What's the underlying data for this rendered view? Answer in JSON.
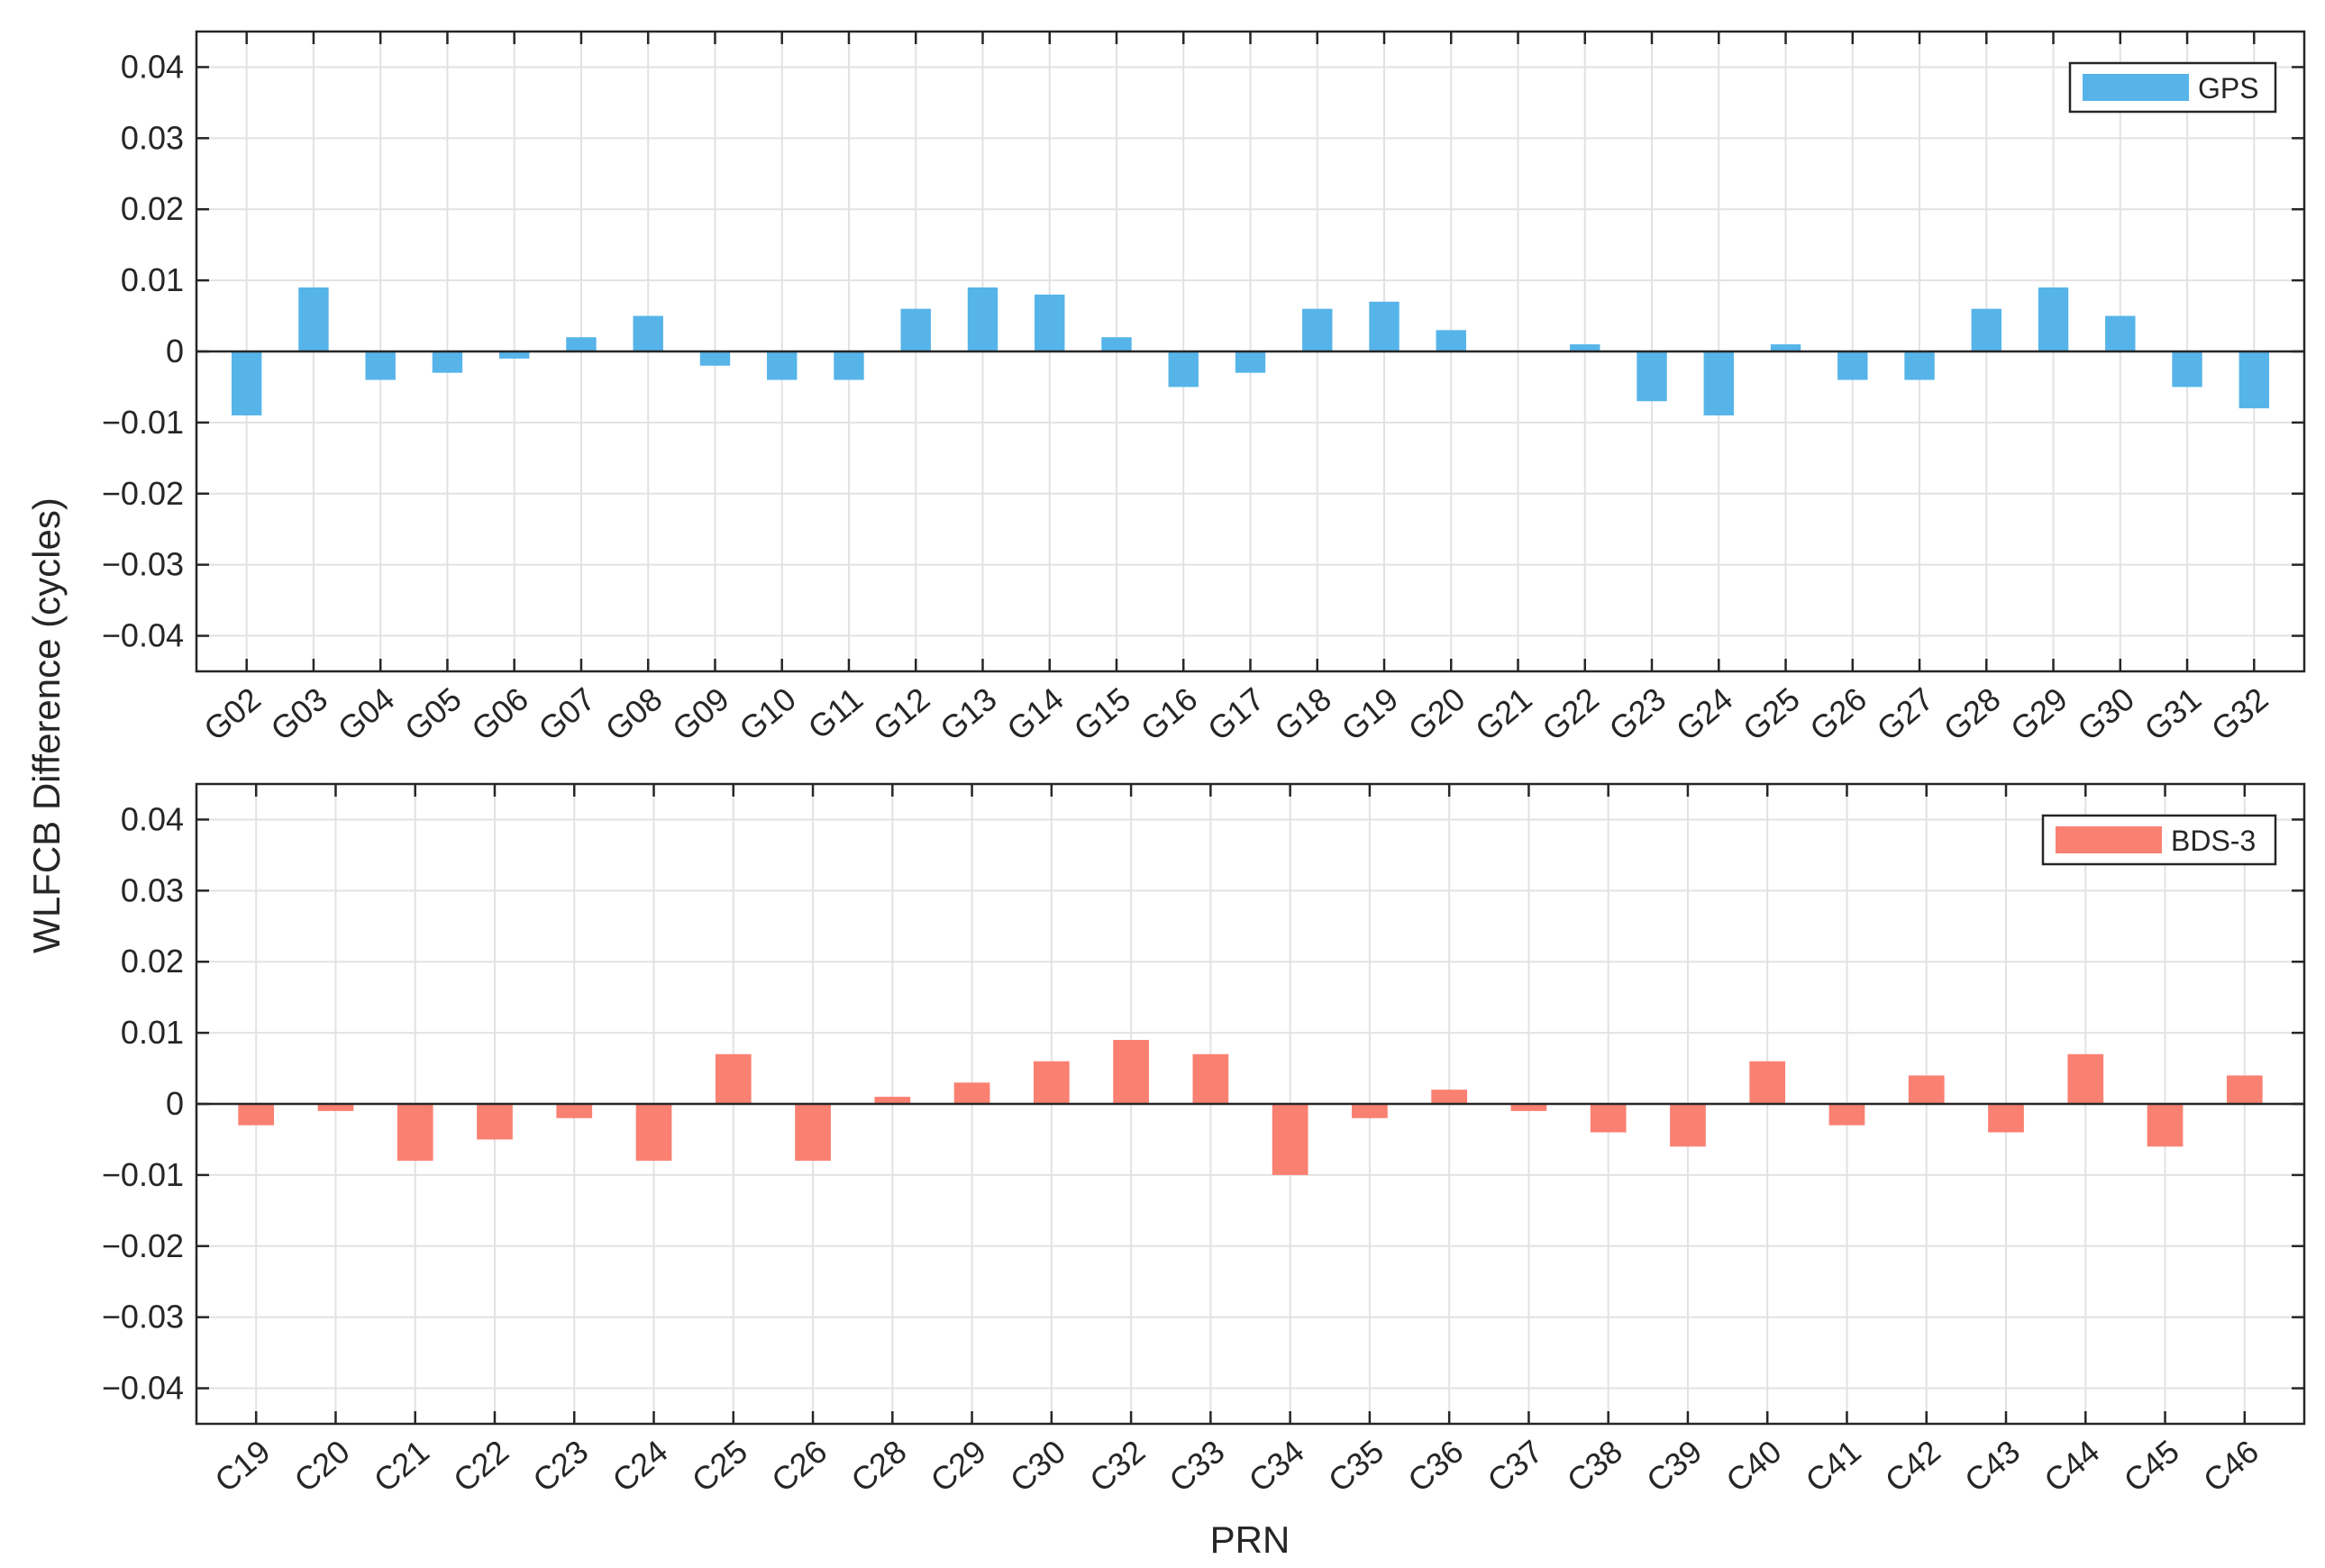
{
  "figure": {
    "ylabel": "WLFCB Difference (cycles)",
    "xlabel": "PRN"
  },
  "chart_data": [
    {
      "type": "bar",
      "categories": [
        "G02",
        "G03",
        "G04",
        "G05",
        "G06",
        "G07",
        "G08",
        "G09",
        "G10",
        "G11",
        "G12",
        "G13",
        "G14",
        "G15",
        "G16",
        "G17",
        "G18",
        "G19",
        "G20",
        "G21",
        "G22",
        "G23",
        "G24",
        "G25",
        "G26",
        "G27",
        "G28",
        "G29",
        "G30",
        "G31",
        "G32"
      ],
      "series": [
        {
          "name": "GPS",
          "color": "#56B4E9",
          "values": [
            -0.009,
            0.009,
            -0.004,
            -0.003,
            -0.001,
            0.002,
            0.005,
            -0.002,
            -0.004,
            -0.004,
            0.006,
            0.009,
            0.008,
            0.002,
            -0.005,
            -0.003,
            0.006,
            0.007,
            0.003,
            0,
            0.001,
            -0.007,
            -0.009,
            0.001,
            -0.004,
            -0.004,
            0.006,
            0.009,
            0.005,
            -0.005,
            -0.008
          ]
        }
      ],
      "ylim": [
        -0.045,
        0.045
      ],
      "yticks": [
        -0.04,
        -0.03,
        -0.02,
        -0.01,
        0,
        0.01,
        0.02,
        0.03,
        0.04
      ],
      "ytick_labels": [
        "−0.04",
        "−0.03",
        "−0.02",
        "−0.01",
        "0",
        "0.01",
        "0.02",
        "0.03",
        "0.04"
      ],
      "grid": true,
      "legend": "top-right"
    },
    {
      "type": "bar",
      "categories": [
        "C19",
        "C20",
        "C21",
        "C22",
        "C23",
        "C24",
        "C25",
        "C26",
        "C28",
        "C29",
        "C30",
        "C32",
        "C33",
        "C34",
        "C35",
        "C36",
        "C37",
        "C38",
        "C39",
        "C40",
        "C41",
        "C42",
        "C43",
        "C44",
        "C45",
        "C46"
      ],
      "series": [
        {
          "name": "BDS-3",
          "color": "#FA8072",
          "values": [
            -0.003,
            -0.001,
            -0.008,
            -0.005,
            -0.002,
            -0.008,
            0.007,
            -0.008,
            0.001,
            0.003,
            0.006,
            0.009,
            0.007,
            -0.01,
            -0.002,
            0.002,
            -0.001,
            -0.004,
            -0.006,
            0.006,
            -0.003,
            0.004,
            -0.004,
            0.007,
            -0.006,
            0.004
          ]
        }
      ],
      "ylim": [
        -0.045,
        0.045
      ],
      "yticks": [
        -0.04,
        -0.03,
        -0.02,
        -0.01,
        0,
        0.01,
        0.02,
        0.03,
        0.04
      ],
      "ytick_labels": [
        "−0.04",
        "−0.03",
        "−0.02",
        "−0.01",
        "0",
        "0.01",
        "0.02",
        "0.03",
        "0.04"
      ],
      "grid": true,
      "legend": "top-right"
    }
  ]
}
